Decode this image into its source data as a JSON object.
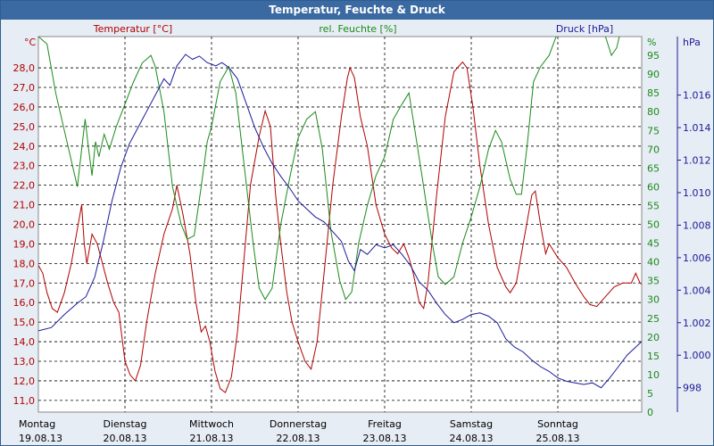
{
  "window": {
    "title": "Temperatur, Feuchte & Druck"
  },
  "chart_data": {
    "type": "line",
    "title": "Temperatur, Feuchte & Druck",
    "grid": true,
    "x_days": [
      {
        "day": "Montag",
        "date": "19.08.13"
      },
      {
        "day": "Dienstag",
        "date": "20.08.13"
      },
      {
        "day": "Mittwoch",
        "date": "21.08.13"
      },
      {
        "day": "Donnerstag",
        "date": "22.08.13"
      },
      {
        "day": "Freitag",
        "date": "23.08.13"
      },
      {
        "day": "Samstag",
        "date": "24.08.13"
      },
      {
        "day": "Sonntag",
        "date": "25.08.13"
      }
    ],
    "axes": {
      "temperature": {
        "label": "Temperatur [°C]",
        "unit": "°C",
        "color": "#b00000",
        "ylim": [
          10.4,
          29.6
        ],
        "ticks": [
          "28,0",
          "27,0",
          "26,0",
          "25,0",
          "24,0",
          "23,0",
          "22,0",
          "21,0",
          "20,0",
          "19,0",
          "18,0",
          "17,0",
          "16,0",
          "15,0",
          "14,0",
          "13,0",
          "12,0",
          "11,0"
        ],
        "tick_values": [
          28,
          27,
          26,
          25,
          24,
          23,
          22,
          21,
          20,
          19,
          18,
          17,
          16,
          15,
          14,
          13,
          12,
          11
        ]
      },
      "humidity": {
        "label": "rel. Feuchte [%]",
        "unit": "%",
        "color": "#1a8a1a",
        "ylim": [
          0,
          100
        ],
        "ticks": [
          "95",
          "90",
          "85",
          "80",
          "75",
          "70",
          "65",
          "60",
          "55",
          "50",
          "45",
          "40",
          "35",
          "30",
          "25",
          "20",
          "15",
          "10",
          "5",
          "0"
        ],
        "tick_values": [
          95,
          90,
          85,
          80,
          75,
          70,
          65,
          60,
          55,
          50,
          45,
          40,
          35,
          30,
          25,
          20,
          15,
          10,
          5,
          0
        ]
      },
      "pressure": {
        "label": "Druck [hPa]",
        "unit": "hPa",
        "color": "#1a1a9a",
        "ylim": [
          996.5,
          1019.6
        ],
        "ticks": [
          "1.016",
          "1.014",
          "1.012",
          "1.010",
          "1.008",
          "1.006",
          "1.004",
          "1.002",
          "1.000",
          "998"
        ],
        "tick_values": [
          1016,
          1014,
          1012,
          1010,
          1008,
          1006,
          1004,
          1002,
          1000,
          998
        ]
      }
    },
    "series": [
      {
        "name": "Temperatur [°C]",
        "axis": "temperature",
        "color": "#b00000",
        "points": [
          [
            0,
            17.9
          ],
          [
            0.05,
            17.5
          ],
          [
            0.1,
            16.5
          ],
          [
            0.16,
            15.7
          ],
          [
            0.22,
            15.5
          ],
          [
            0.3,
            16.5
          ],
          [
            0.38,
            18.0
          ],
          [
            0.46,
            20.0
          ],
          [
            0.5,
            21.0
          ],
          [
            0.53,
            19.0
          ],
          [
            0.56,
            18.0
          ],
          [
            0.62,
            19.5
          ],
          [
            0.68,
            19.0
          ],
          [
            0.74,
            18.0
          ],
          [
            0.8,
            17.0
          ],
          [
            0.87,
            16.0
          ],
          [
            0.93,
            15.5
          ],
          [
            1.0,
            13.0
          ],
          [
            1.06,
            12.3
          ],
          [
            1.12,
            12.0
          ],
          [
            1.18,
            12.8
          ],
          [
            1.25,
            15.0
          ],
          [
            1.35,
            17.5
          ],
          [
            1.45,
            19.5
          ],
          [
            1.55,
            20.8
          ],
          [
            1.6,
            22.0
          ],
          [
            1.67,
            20.5
          ],
          [
            1.75,
            18.5
          ],
          [
            1.82,
            16.0
          ],
          [
            1.88,
            14.5
          ],
          [
            1.93,
            14.8
          ],
          [
            1.98,
            14.0
          ],
          [
            2.04,
            12.5
          ],
          [
            2.1,
            11.6
          ],
          [
            2.16,
            11.4
          ],
          [
            2.23,
            12.2
          ],
          [
            2.3,
            14.5
          ],
          [
            2.38,
            18.5
          ],
          [
            2.45,
            22.0
          ],
          [
            2.55,
            24.5
          ],
          [
            2.62,
            25.8
          ],
          [
            2.68,
            25.0
          ],
          [
            2.74,
            21.5
          ],
          [
            2.8,
            19.0
          ],
          [
            2.87,
            16.5
          ],
          [
            2.93,
            15.0
          ],
          [
            3.0,
            14.0
          ],
          [
            3.08,
            13.0
          ],
          [
            3.15,
            12.6
          ],
          [
            3.22,
            14.0
          ],
          [
            3.3,
            17.5
          ],
          [
            3.4,
            22.0
          ],
          [
            3.5,
            25.5
          ],
          [
            3.57,
            27.5
          ],
          [
            3.6,
            28.0
          ],
          [
            3.65,
            27.5
          ],
          [
            3.72,
            25.5
          ],
          [
            3.8,
            24.0
          ],
          [
            3.9,
            21.0
          ],
          [
            4.0,
            19.5
          ],
          [
            4.08,
            18.8
          ],
          [
            4.15,
            18.5
          ],
          [
            4.22,
            19.0
          ],
          [
            4.28,
            18.3
          ],
          [
            4.33,
            17.5
          ],
          [
            4.4,
            16.0
          ],
          [
            4.45,
            15.7
          ],
          [
            4.5,
            17.0
          ],
          [
            4.6,
            21.5
          ],
          [
            4.7,
            25.5
          ],
          [
            4.8,
            27.8
          ],
          [
            4.9,
            28.3
          ],
          [
            4.95,
            28.0
          ],
          [
            5.02,
            26.0
          ],
          [
            5.1,
            23.0
          ],
          [
            5.2,
            20.0
          ],
          [
            5.3,
            17.8
          ],
          [
            5.4,
            16.8
          ],
          [
            5.45,
            16.5
          ],
          [
            5.52,
            17.0
          ],
          [
            5.6,
            19.0
          ],
          [
            5.7,
            21.5
          ],
          [
            5.74,
            21.7
          ],
          [
            5.8,
            20.0
          ],
          [
            5.86,
            18.5
          ],
          [
            5.9,
            19.0
          ],
          [
            6.0,
            18.3
          ],
          [
            6.1,
            17.8
          ],
          [
            6.2,
            17.0
          ],
          [
            6.3,
            16.3
          ],
          [
            6.37,
            15.9
          ],
          [
            6.45,
            15.8
          ],
          [
            6.55,
            16.3
          ],
          [
            6.65,
            16.8
          ],
          [
            6.75,
            17.0
          ],
          [
            6.85,
            17.0
          ],
          [
            6.9,
            17.5
          ],
          [
            6.95,
            17.0
          ],
          [
            7.05,
            16.7
          ],
          [
            7.12,
            16.0
          ]
        ]
      },
      {
        "name": "rel. Feuchte [%]",
        "axis": "humidity",
        "color": "#1a8a1a",
        "points": [
          [
            0,
            100
          ],
          [
            0.1,
            98
          ],
          [
            0.2,
            85
          ],
          [
            0.3,
            75
          ],
          [
            0.4,
            65
          ],
          [
            0.45,
            60
          ],
          [
            0.5,
            70
          ],
          [
            0.54,
            78
          ],
          [
            0.58,
            70
          ],
          [
            0.62,
            63
          ],
          [
            0.66,
            72
          ],
          [
            0.7,
            68
          ],
          [
            0.76,
            74
          ],
          [
            0.82,
            70
          ],
          [
            0.9,
            76
          ],
          [
            1.0,
            82
          ],
          [
            1.1,
            88
          ],
          [
            1.2,
            93
          ],
          [
            1.3,
            95
          ],
          [
            1.35,
            92
          ],
          [
            1.45,
            80
          ],
          [
            1.55,
            60
          ],
          [
            1.65,
            50
          ],
          [
            1.72,
            46
          ],
          [
            1.8,
            47
          ],
          [
            1.88,
            60
          ],
          [
            1.95,
            72
          ],
          [
            2.0,
            76
          ],
          [
            2.1,
            88
          ],
          [
            2.2,
            92
          ],
          [
            2.28,
            85
          ],
          [
            2.38,
            65
          ],
          [
            2.48,
            45
          ],
          [
            2.55,
            33
          ],
          [
            2.62,
            30
          ],
          [
            2.7,
            33
          ],
          [
            2.8,
            50
          ],
          [
            2.9,
            62
          ],
          [
            3.0,
            73
          ],
          [
            3.1,
            78
          ],
          [
            3.2,
            80
          ],
          [
            3.28,
            70
          ],
          [
            3.38,
            48
          ],
          [
            3.48,
            35
          ],
          [
            3.55,
            30
          ],
          [
            3.62,
            32
          ],
          [
            3.7,
            45
          ],
          [
            3.8,
            55
          ],
          [
            3.9,
            63
          ],
          [
            4.0,
            68
          ],
          [
            4.1,
            78
          ],
          [
            4.2,
            82
          ],
          [
            4.28,
            85
          ],
          [
            4.35,
            75
          ],
          [
            4.45,
            60
          ],
          [
            4.55,
            45
          ],
          [
            4.62,
            36
          ],
          [
            4.7,
            34
          ],
          [
            4.8,
            36
          ],
          [
            4.9,
            45
          ],
          [
            5.0,
            52
          ],
          [
            5.1,
            60
          ],
          [
            5.2,
            70
          ],
          [
            5.28,
            75
          ],
          [
            5.35,
            72
          ],
          [
            5.45,
            62
          ],
          [
            5.52,
            58
          ],
          [
            5.58,
            58
          ],
          [
            5.65,
            72
          ],
          [
            5.72,
            88
          ],
          [
            5.8,
            92
          ],
          [
            5.9,
            95
          ],
          [
            5.98,
            100
          ],
          [
            6.05,
            103
          ],
          [
            6.15,
            103
          ],
          [
            6.3,
            103
          ],
          [
            6.4,
            103
          ],
          [
            6.55,
            100
          ],
          [
            6.62,
            95
          ],
          [
            6.68,
            97
          ],
          [
            6.75,
            104
          ],
          [
            6.9,
            104
          ],
          [
            7.0,
            104
          ],
          [
            7.12,
            104
          ]
        ]
      },
      {
        "name": "Druck [hPa]",
        "axis": "pressure",
        "color": "#1a1a9a",
        "points": [
          [
            0,
            1001.5
          ],
          [
            0.15,
            1001.7
          ],
          [
            0.3,
            1002.5
          ],
          [
            0.45,
            1003.2
          ],
          [
            0.55,
            1003.6
          ],
          [
            0.65,
            1004.8
          ],
          [
            0.75,
            1007.0
          ],
          [
            0.85,
            1009.5
          ],
          [
            0.95,
            1011.5
          ],
          [
            1.05,
            1013.0
          ],
          [
            1.15,
            1014.0
          ],
          [
            1.25,
            1015.0
          ],
          [
            1.35,
            1016.0
          ],
          [
            1.45,
            1017.0
          ],
          [
            1.52,
            1016.6
          ],
          [
            1.6,
            1017.8
          ],
          [
            1.7,
            1018.5
          ],
          [
            1.78,
            1018.2
          ],
          [
            1.86,
            1018.4
          ],
          [
            1.95,
            1018.0
          ],
          [
            2.05,
            1017.8
          ],
          [
            2.12,
            1018.0
          ],
          [
            2.2,
            1017.7
          ],
          [
            2.3,
            1017.0
          ],
          [
            2.4,
            1015.5
          ],
          [
            2.5,
            1014.0
          ],
          [
            2.6,
            1012.8
          ],
          [
            2.7,
            1011.8
          ],
          [
            2.8,
            1011.0
          ],
          [
            2.9,
            1010.3
          ],
          [
            3.0,
            1009.5
          ],
          [
            3.1,
            1009.0
          ],
          [
            3.2,
            1008.5
          ],
          [
            3.3,
            1008.2
          ],
          [
            3.4,
            1007.6
          ],
          [
            3.5,
            1007.0
          ],
          [
            3.58,
            1005.8
          ],
          [
            3.65,
            1005.2
          ],
          [
            3.72,
            1006.5
          ],
          [
            3.8,
            1006.2
          ],
          [
            3.9,
            1006.8
          ],
          [
            4.0,
            1006.6
          ],
          [
            4.1,
            1006.8
          ],
          [
            4.2,
            1006.2
          ],
          [
            4.3,
            1005.5
          ],
          [
            4.4,
            1004.5
          ],
          [
            4.5,
            1004.0
          ],
          [
            4.6,
            1003.2
          ],
          [
            4.7,
            1002.5
          ],
          [
            4.8,
            1002.0
          ],
          [
            4.9,
            1002.2
          ],
          [
            5.0,
            1002.5
          ],
          [
            5.1,
            1002.6
          ],
          [
            5.2,
            1002.4
          ],
          [
            5.3,
            1002.0
          ],
          [
            5.4,
            1001.0
          ],
          [
            5.5,
            1000.5
          ],
          [
            5.6,
            1000.2
          ],
          [
            5.7,
            999.7
          ],
          [
            5.8,
            999.3
          ],
          [
            5.9,
            999.0
          ],
          [
            6.0,
            998.6
          ],
          [
            6.1,
            998.4
          ],
          [
            6.2,
            998.3
          ],
          [
            6.3,
            998.2
          ],
          [
            6.4,
            998.3
          ],
          [
            6.5,
            998.0
          ],
          [
            6.6,
            998.6
          ],
          [
            6.7,
            999.3
          ],
          [
            6.8,
            1000.0
          ],
          [
            6.9,
            1000.5
          ],
          [
            7.0,
            1001.0
          ],
          [
            7.1,
            1001.6
          ],
          [
            7.2,
            1001.8
          ]
        ]
      }
    ]
  }
}
